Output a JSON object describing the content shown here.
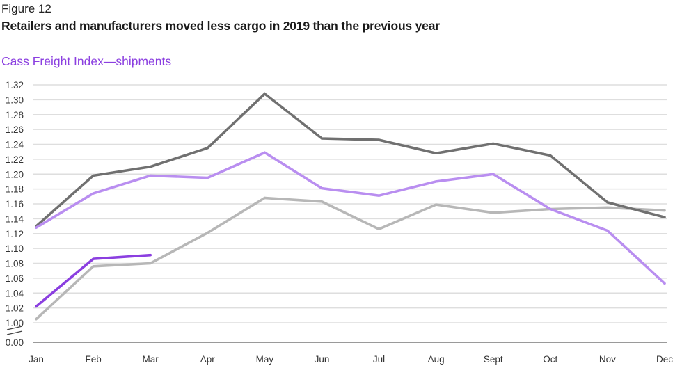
{
  "figure_label": "Figure 12",
  "figure_title": "Retailers and manufacturers moved less cargo in 2019 than the previous year",
  "chart_data": {
    "type": "line",
    "title": "Cass Freight Index—shipments",
    "xlabel": "",
    "ylabel": "",
    "categories": [
      "Jan",
      "Feb",
      "Mar",
      "Apr",
      "May",
      "Jun",
      "Jul",
      "Aug",
      "Sept",
      "Oct",
      "Nov",
      "Dec"
    ],
    "y_ticks": [
      "1.32",
      "1.30",
      "1.28",
      "1.26",
      "1.24",
      "1.22",
      "1.20",
      "1.18",
      "1.16",
      "1.14",
      "1.12",
      "1.10",
      "1.08",
      "1.06",
      "1.04",
      "1.02",
      "1.00"
    ],
    "y_axis_break_label": "0.00",
    "ylim": [
      1.0,
      1.32
    ],
    "grid": true,
    "legend": "none",
    "series": [
      {
        "name": "series-light-gray",
        "color": "#b7b7b7",
        "values": [
          1.005,
          1.076,
          1.08,
          1.121,
          1.168,
          1.163,
          1.126,
          1.159,
          1.148,
          1.153,
          1.155,
          1.151
        ]
      },
      {
        "name": "series-dark-gray",
        "color": "#707070",
        "values": [
          1.13,
          1.198,
          1.21,
          1.235,
          1.308,
          1.248,
          1.246,
          1.228,
          1.241,
          1.225,
          1.162,
          1.142
        ]
      },
      {
        "name": "series-light-purple",
        "color": "#b98ef0",
        "values": [
          1.128,
          1.174,
          1.198,
          1.195,
          1.229,
          1.181,
          1.171,
          1.19,
          1.2,
          1.153,
          1.124,
          1.053
        ]
      },
      {
        "name": "series-purple",
        "color": "#8b3fe0",
        "values": [
          1.022,
          1.086,
          1.091,
          null,
          null,
          null,
          null,
          null,
          null,
          null,
          null,
          null
        ]
      }
    ]
  }
}
